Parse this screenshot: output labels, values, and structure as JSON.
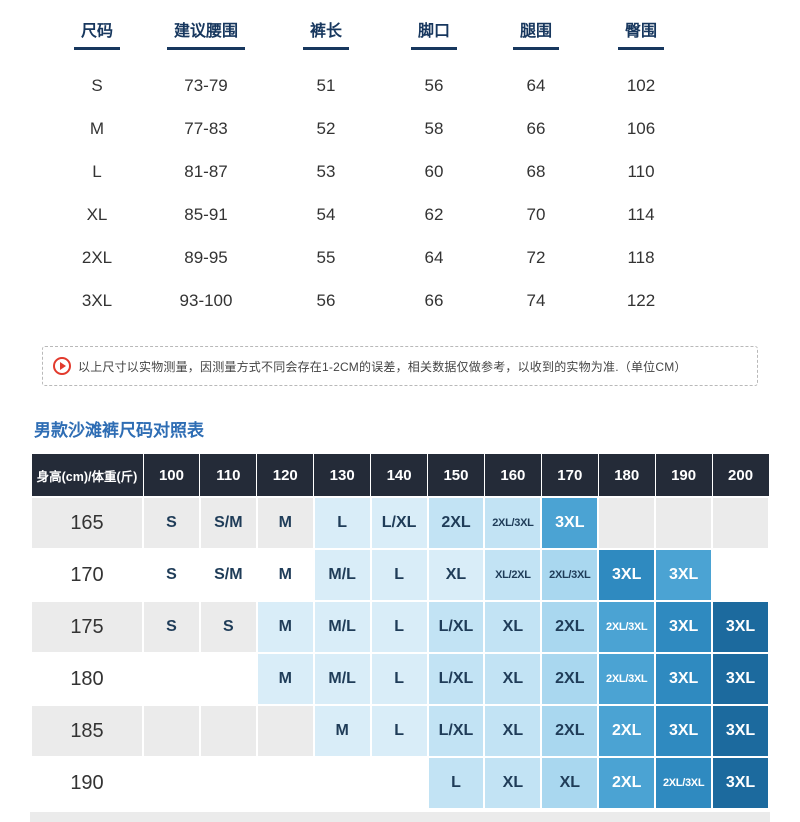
{
  "size_table": {
    "headers": [
      "尺码",
      "建议腰围",
      "裤长",
      "脚口",
      "腿围",
      "臀围"
    ],
    "rows": [
      [
        "S",
        "73-79",
        "51",
        "56",
        "64",
        "102"
      ],
      [
        "M",
        "77-83",
        "52",
        "58",
        "66",
        "106"
      ],
      [
        "L",
        "81-87",
        "53",
        "60",
        "68",
        "110"
      ],
      [
        "XL",
        "85-91",
        "54",
        "62",
        "70",
        "114"
      ],
      [
        "2XL",
        "89-95",
        "55",
        "64",
        "72",
        "118"
      ],
      [
        "3XL",
        "93-100",
        "56",
        "66",
        "74",
        "122"
      ]
    ]
  },
  "notice": {
    "text": "以上尺寸以实物测量，因测量方式不同会存在1-2CM的误差，相关数据仅做参考，以收到的实物为准.（单位CM）",
    "icon": "arrow-right-circle-icon"
  },
  "section_title": "男款沙滩裤尺码对照表",
  "matrix": {
    "corner_header": "身高(cm)/体重(斤)",
    "columns": [
      "100",
      "110",
      "120",
      "130",
      "140",
      "150",
      "160",
      "170",
      "180",
      "190",
      "200"
    ],
    "rows": [
      {
        "height": "165",
        "cells": [
          {
            "t": "S",
            "s": 0
          },
          {
            "t": "S/M",
            "s": 0
          },
          {
            "t": "M",
            "s": 0
          },
          {
            "t": "L",
            "s": 1
          },
          {
            "t": "L/XL",
            "s": 1
          },
          {
            "t": "2XL",
            "s": 2
          },
          {
            "t": "2XL/3XL",
            "s": 2
          },
          {
            "t": "3XL",
            "s": 5
          },
          {
            "t": "",
            "s": 0
          },
          {
            "t": "",
            "s": 0
          },
          {
            "t": "",
            "s": 0
          }
        ]
      },
      {
        "height": "170",
        "cells": [
          {
            "t": "S",
            "s": 0
          },
          {
            "t": "S/M",
            "s": 0
          },
          {
            "t": "M",
            "s": 0
          },
          {
            "t": "M/L",
            "s": 1
          },
          {
            "t": "L",
            "s": 1
          },
          {
            "t": "XL",
            "s": 1
          },
          {
            "t": "XL/2XL",
            "s": 2
          },
          {
            "t": "2XL/3XL",
            "s": 3
          },
          {
            "t": "3XL",
            "s": 6
          },
          {
            "t": "3XL",
            "s": 5
          },
          {
            "t": "",
            "s": 0
          }
        ]
      },
      {
        "height": "175",
        "cells": [
          {
            "t": "S",
            "s": 0
          },
          {
            "t": "S",
            "s": 0
          },
          {
            "t": "M",
            "s": 1
          },
          {
            "t": "M/L",
            "s": 1
          },
          {
            "t": "L",
            "s": 1
          },
          {
            "t": "L/XL",
            "s": 2
          },
          {
            "t": "XL",
            "s": 2
          },
          {
            "t": "2XL",
            "s": 3
          },
          {
            "t": "2XL/3XL",
            "s": 5
          },
          {
            "t": "3XL",
            "s": 6
          },
          {
            "t": "3XL",
            "s": 7
          }
        ]
      },
      {
        "height": "180",
        "cells": [
          {
            "t": "",
            "s": 0
          },
          {
            "t": "",
            "s": 0
          },
          {
            "t": "M",
            "s": 1
          },
          {
            "t": "M/L",
            "s": 1
          },
          {
            "t": "L",
            "s": 1
          },
          {
            "t": "L/XL",
            "s": 2
          },
          {
            "t": "XL",
            "s": 2
          },
          {
            "t": "2XL",
            "s": 3
          },
          {
            "t": "2XL/3XL",
            "s": 5
          },
          {
            "t": "3XL",
            "s": 6
          },
          {
            "t": "3XL",
            "s": 7
          }
        ]
      },
      {
        "height": "185",
        "cells": [
          {
            "t": "",
            "s": 0
          },
          {
            "t": "",
            "s": 0
          },
          {
            "t": "",
            "s": 0
          },
          {
            "t": "M",
            "s": 1
          },
          {
            "t": "L",
            "s": 1
          },
          {
            "t": "L/XL",
            "s": 2
          },
          {
            "t": "XL",
            "s": 2
          },
          {
            "t": "2XL",
            "s": 3
          },
          {
            "t": "2XL",
            "s": 5
          },
          {
            "t": "3XL",
            "s": 6
          },
          {
            "t": "3XL",
            "s": 7
          }
        ]
      },
      {
        "height": "190",
        "cells": [
          {
            "t": "",
            "s": 0
          },
          {
            "t": "",
            "s": 0
          },
          {
            "t": "",
            "s": 0
          },
          {
            "t": "",
            "s": 0
          },
          {
            "t": "",
            "s": 0
          },
          {
            "t": "L",
            "s": 2
          },
          {
            "t": "XL",
            "s": 2
          },
          {
            "t": "XL",
            "s": 3
          },
          {
            "t": "2XL",
            "s": 5
          },
          {
            "t": "2XL/3XL",
            "s": 6
          },
          {
            "t": "3XL",
            "s": 7
          }
        ]
      }
    ]
  },
  "colors": {
    "accent_blue": "#2e6db4",
    "table_header_text": "#17375e",
    "matrix_header_bg": "#242b38",
    "row_alt_bg": "#ebebeb",
    "row_bg": "#ffffff",
    "notice_red": "#e23a2d",
    "shades": [
      "transparent",
      "#d9edf8",
      "#c2e3f4",
      "#a9d7ef",
      "#8fc9e8",
      "#4ba3d3",
      "#2f8ac0",
      "#1c6a9e"
    ],
    "white_text_from": 5
  }
}
